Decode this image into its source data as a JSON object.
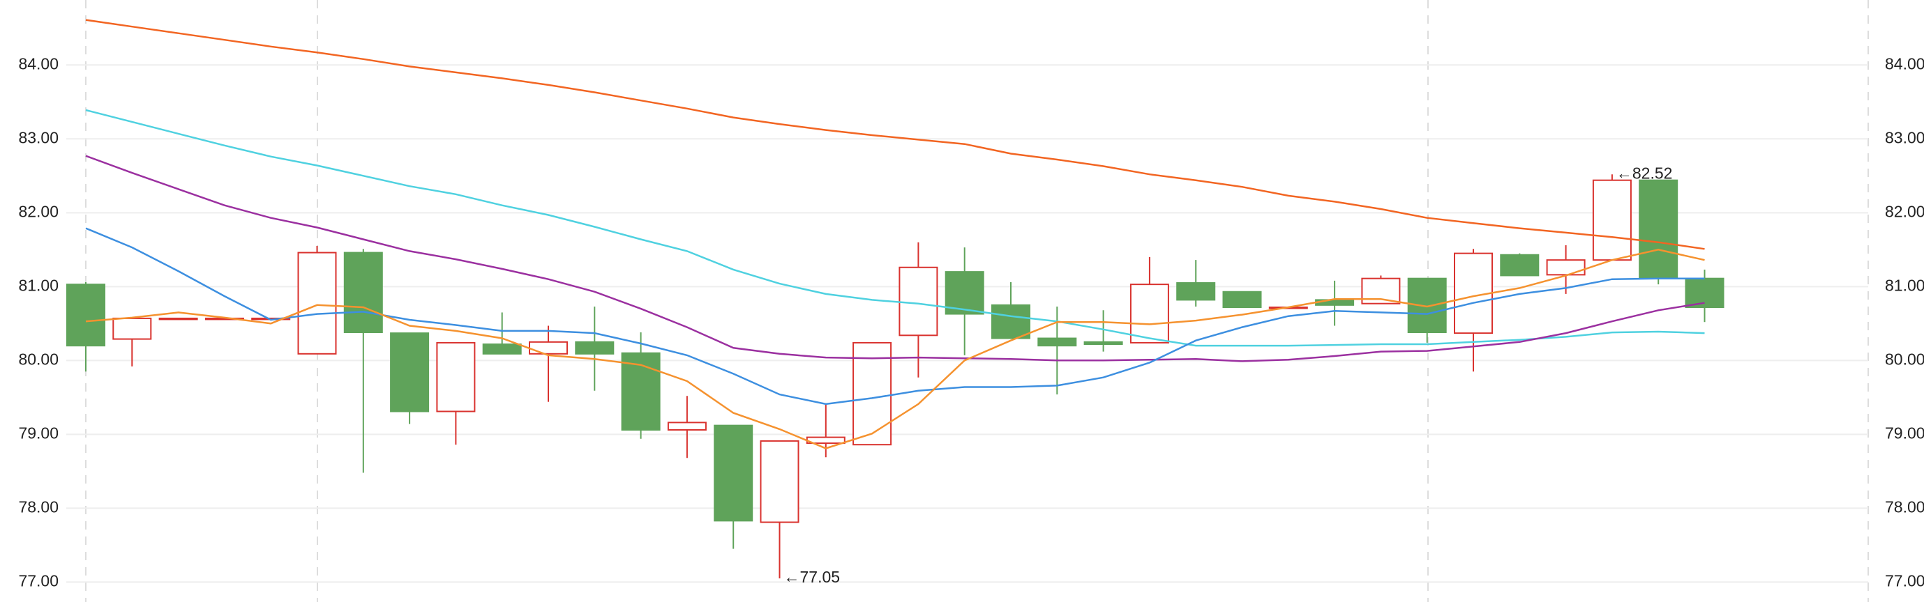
{
  "chart_data": {
    "type": "candlestick",
    "up_color": "#d9322e",
    "down_color": "#5fa35a",
    "ylim": [
      76.73,
      84.88
    ],
    "yticks": [
      {
        "value": 77,
        "label": "77.00"
      },
      {
        "value": 78,
        "label": "78.00"
      },
      {
        "value": 79,
        "label": "79.00"
      },
      {
        "value": 80,
        "label": "80.00"
      },
      {
        "value": 81,
        "label": "81.00"
      },
      {
        "value": 82,
        "label": "82.00"
      },
      {
        "value": 83,
        "label": "83.00"
      },
      {
        "value": 84,
        "label": "84.00"
      }
    ],
    "grid": true,
    "open": [
      81.03,
      80.29,
      80.57,
      80.57,
      80.57,
      80.09,
      81.46,
      80.37,
      79.31,
      80.22,
      80.09,
      80.25,
      80.1,
      79.06,
      79.12,
      77.81,
      78.88,
      78.86,
      80.34,
      81.2,
      80.75,
      80.3,
      80.25,
      80.24,
      81.05,
      80.93,
      80.72,
      80.82,
      80.77,
      81.11,
      80.37,
      81.43,
      81.16,
      81.36,
      82.44,
      81.11
    ],
    "high": [
      81.06,
      80.57,
      80.57,
      80.57,
      80.57,
      81.55,
      81.51,
      80.37,
      80.24,
      80.65,
      80.47,
      80.73,
      80.38,
      79.52,
      79.12,
      78.91,
      79.41,
      80.24,
      81.6,
      81.53,
      81.06,
      80.73,
      80.68,
      81.4,
      81.36,
      80.93,
      80.72,
      81.08,
      81.15,
      81.11,
      81.51,
      81.45,
      81.56,
      82.52,
      82.44,
      81.23
    ],
    "low": [
      79.85,
      79.92,
      80.57,
      80.57,
      80.57,
      80.09,
      78.48,
      79.14,
      78.86,
      80.09,
      79.44,
      79.59,
      78.94,
      78.68,
      77.45,
      77.05,
      78.69,
      78.86,
      79.77,
      80.07,
      80.3,
      79.54,
      80.12,
      80.24,
      80.73,
      80.72,
      80.72,
      80.47,
      80.77,
      80.24,
      79.85,
      81.15,
      80.9,
      81.36,
      81.03,
      80.52
    ],
    "close": [
      80.2,
      80.57,
      80.57,
      80.57,
      80.57,
      81.46,
      80.38,
      79.31,
      80.24,
      80.09,
      80.25,
      80.09,
      79.06,
      79.16,
      77.83,
      78.91,
      78.96,
      80.24,
      81.26,
      80.63,
      80.3,
      80.2,
      80.22,
      81.03,
      80.82,
      80.72,
      80.72,
      80.75,
      81.11,
      80.38,
      81.45,
      81.15,
      81.36,
      82.44,
      81.11,
      80.72
    ],
    "moving_averages": [
      {
        "color": "#f26522",
        "values": [
          84.61,
          84.52,
          84.43,
          84.34,
          84.25,
          84.17,
          84.08,
          83.98,
          83.9,
          83.82,
          83.73,
          83.63,
          83.52,
          83.41,
          83.29,
          83.2,
          83.12,
          83.05,
          82.99,
          82.93,
          82.8,
          82.72,
          82.63,
          82.52,
          82.44,
          82.35,
          82.23,
          82.15,
          82.05,
          81.93,
          81.86,
          81.79,
          81.73,
          81.67,
          81.6,
          81.51
        ]
      },
      {
        "color": "#4fd1e0",
        "values": [
          83.39,
          83.23,
          83.07,
          82.91,
          82.76,
          82.64,
          82.5,
          82.36,
          82.25,
          82.1,
          81.97,
          81.81,
          81.64,
          81.48,
          81.23,
          81.04,
          80.9,
          80.82,
          80.77,
          80.69,
          80.6,
          80.53,
          80.42,
          80.3,
          80.2,
          80.2,
          80.2,
          80.21,
          80.22,
          80.22,
          80.25,
          80.28,
          80.32,
          80.38,
          80.39,
          80.37
        ]
      },
      {
        "color": "#9b30a0",
        "values": [
          82.77,
          82.54,
          82.32,
          82.1,
          81.93,
          81.8,
          81.64,
          81.48,
          81.37,
          81.24,
          81.1,
          80.93,
          80.7,
          80.45,
          80.17,
          80.09,
          80.04,
          80.03,
          80.04,
          80.03,
          80.02,
          80.0,
          80.0,
          80.01,
          80.02,
          79.99,
          80.01,
          80.06,
          80.12,
          80.13,
          80.19,
          80.25,
          80.37,
          80.53,
          80.68,
          80.78
        ]
      },
      {
        "color": "#3d8fe0",
        "values": [
          81.79,
          81.53,
          81.21,
          80.87,
          80.55,
          80.63,
          80.66,
          80.55,
          80.48,
          80.4,
          80.4,
          80.37,
          80.23,
          80.07,
          79.82,
          79.54,
          79.41,
          79.49,
          79.59,
          79.64,
          79.64,
          79.66,
          79.77,
          79.97,
          80.27,
          80.45,
          80.6,
          80.67,
          80.65,
          80.63,
          80.78,
          80.9,
          80.98,
          81.1,
          81.11,
          81.11
        ]
      },
      {
        "color": "#f5922f",
        "values": [
          80.53,
          80.58,
          80.65,
          80.58,
          80.5,
          80.75,
          80.72,
          80.47,
          80.4,
          80.3,
          80.07,
          80.02,
          79.94,
          79.72,
          79.29,
          79.07,
          78.81,
          79.01,
          79.41,
          80.0,
          80.27,
          80.52,
          80.52,
          80.49,
          80.54,
          80.62,
          80.72,
          80.83,
          80.83,
          80.73,
          80.87,
          80.98,
          81.15,
          81.36,
          81.5,
          81.36
        ]
      }
    ],
    "annotations": [
      {
        "text": "←82.52",
        "value": 82.52,
        "index": 33
      },
      {
        "text": "←77.05",
        "value": 77.05,
        "index": 15
      }
    ]
  }
}
